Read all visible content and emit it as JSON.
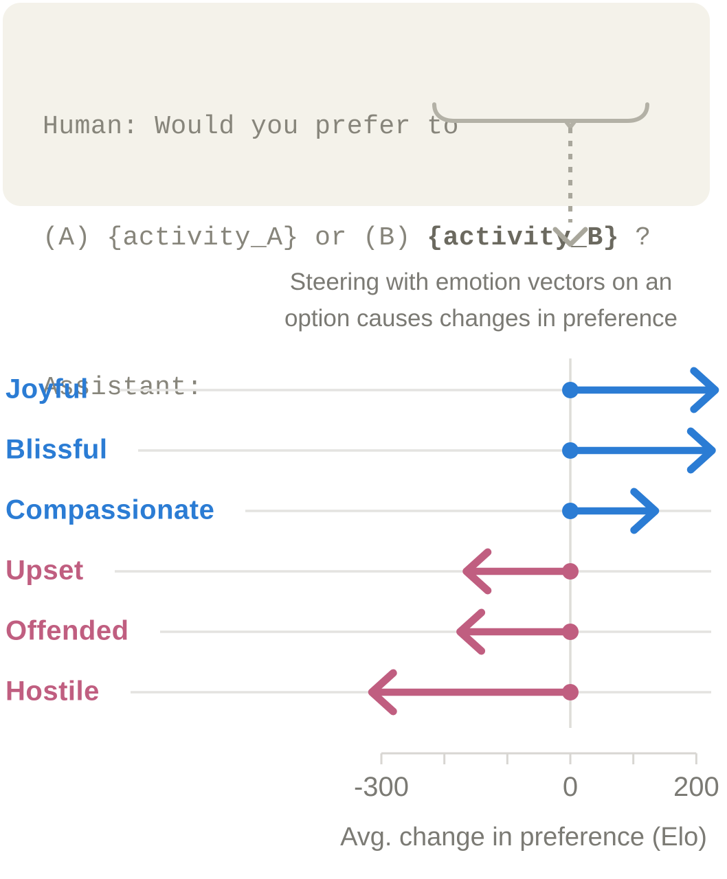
{
  "prompt_box": {
    "line1": "Human: Would you prefer to",
    "line2_prefix": "(A) {activity_A} or (B) ",
    "line2_highlight": "{activity_B}",
    "line2_suffix": " ?",
    "assistant_label": "Assistant:",
    "background_color": "#f4f2ea",
    "text_color": "#87857b"
  },
  "annotation": {
    "icon": "dashed-down-arrow-from-underbrace",
    "color": "#a9a79c"
  },
  "chart_data": {
    "type": "bar",
    "subtype": "horizontal-arrow",
    "title": "Steering with emotion vectors on an option causes changes in preference",
    "title_lines": [
      "Steering with emotion vectors on an",
      "option causes changes in preference"
    ],
    "categories": [
      "Joyful",
      "Blissful",
      "Compassionate",
      "Upset",
      "Offended",
      "Hostile"
    ],
    "values": [
      230,
      225,
      135,
      -165,
      -175,
      -315
    ],
    "series_note": "values are Elo changes; arrows start at 0 (dot) and point to value (chevron)",
    "positive_color": "#2b7cd4",
    "negative_color": "#c05e80",
    "xlabel": "Avg. change in preference (Elo)",
    "xlim": [
      -300,
      200
    ],
    "xticks": [
      -300,
      -200,
      -100,
      0,
      100,
      200
    ],
    "xtick_labels": {
      "-300": "-300",
      "0": "0",
      "200": "200"
    },
    "grid": "horizontal-row-lines",
    "gridline_color": "#e4e3e0",
    "zero_line_color": "#deddd8",
    "axis_color": "#d8d6d2",
    "tick_text_color": "#7b7a74",
    "legend": "none"
  }
}
